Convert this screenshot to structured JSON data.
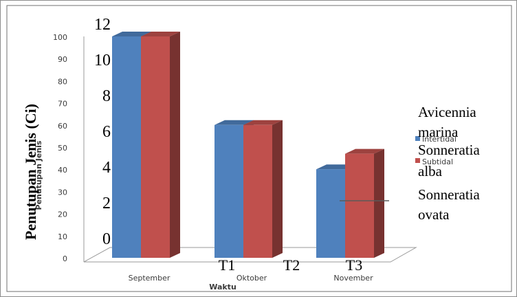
{
  "chart_data": {
    "type": "bar",
    "categories": [
      "September",
      "Oktober",
      "November"
    ],
    "series": [
      {
        "name": "Intertidal",
        "values": [
          100,
          60,
          40
        ],
        "color": "#4f81bd"
      },
      {
        "name": "Subtidal",
        "values": [
          100,
          60,
          47
        ],
        "color": "#c0504d"
      }
    ],
    "ylim": [
      0,
      100
    ],
    "yticks": [
      "0",
      "10",
      "20",
      "30",
      "40",
      "50",
      "60",
      "70",
      "80",
      "90",
      "100"
    ],
    "xlabel": "Waktu",
    "ylabel": "Penutupan Jenis",
    "legend_position": "right",
    "grid": false,
    "three_d": true
  },
  "overlay": {
    "ylabel": "Penutupan Jenis (Ci)",
    "yticks": [
      "0",
      "2",
      "4",
      "6",
      "8",
      "10",
      "12"
    ],
    "xticks": [
      "T1",
      "T2",
      "T3"
    ],
    "legend": [
      "Avicennia",
      "marina",
      "Sonneratia",
      "alba",
      "Sonneratia",
      "ovata"
    ]
  }
}
